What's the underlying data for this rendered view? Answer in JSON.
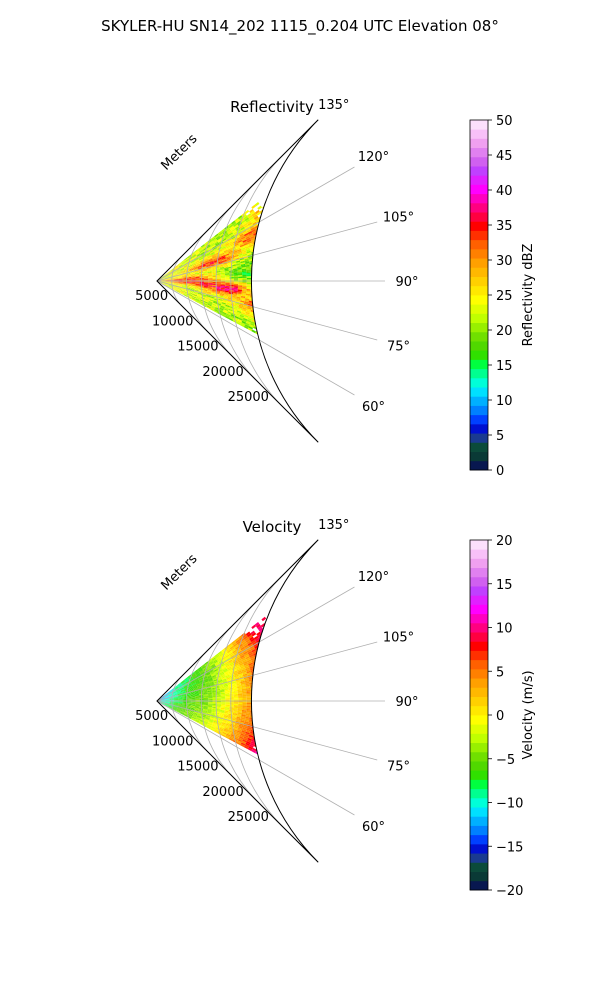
{
  "suptitle": "SKYLER-HU  SN14_202  1115_0.204 UTC Elevation 08°",
  "chart_data": [
    {
      "type": "heatmap",
      "projection": "polar-sector",
      "title": "Reflectivity",
      "radial_label": "Meters",
      "radial_ticks": [
        "5000",
        "10000",
        "15000",
        "20000",
        "25000"
      ],
      "radial_tick_values": [
        5000,
        10000,
        15000,
        20000,
        25000
      ],
      "radial_max": 32000,
      "theta_range_deg": [
        45,
        135
      ],
      "theta_ticks": [
        "60°",
        "75°",
        "90°",
        "105°",
        "120°",
        "135°"
      ],
      "theta_tick_values": [
        60,
        75,
        90,
        105,
        120,
        135
      ],
      "grid": true,
      "colorbar": {
        "label": "Reflectivity dBZ",
        "min": 0,
        "max": 50,
        "ticks": [
          "0",
          "5",
          "10",
          "15",
          "20",
          "25",
          "30",
          "35",
          "40",
          "45",
          "50"
        ],
        "tick_values": [
          0,
          5,
          10,
          15,
          20,
          25,
          30,
          35,
          40,
          45,
          50
        ],
        "colors": [
          "#081850",
          "#0a3a36",
          "#0b4b3a",
          "#1a3a90",
          "#0010d0",
          "#0040ff",
          "#0080ff",
          "#00b0ff",
          "#00e0ff",
          "#00ffd8",
          "#00ff90",
          "#00ff40",
          "#30e000",
          "#50d800",
          "#70e000",
          "#98f000",
          "#c0ff00",
          "#e0ff00",
          "#ffff00",
          "#ffe800",
          "#ffd000",
          "#ffb800",
          "#ffa000",
          "#ff8000",
          "#ff6000",
          "#ff3000",
          "#ff0000",
          "#ff0040",
          "#ff0080",
          "#ff00c0",
          "#ff00ff",
          "#e020ff",
          "#c040ff",
          "#d060f0",
          "#e080f0",
          "#f0a0f0",
          "#f8c0f8",
          "#fce0fc"
        ]
      },
      "sector_extent": {
        "theta_deg": [
          62,
          128
        ],
        "range_m": [
          0,
          23000
        ]
      },
      "patches": [
        {
          "theta": 75,
          "r": 15000,
          "value": 34
        },
        {
          "theta": 70,
          "r": 19000,
          "value": 30
        },
        {
          "theta": 83,
          "r": 9500,
          "value": 37
        },
        {
          "theta": 88,
          "r": 5000,
          "value": 36
        },
        {
          "theta": 93,
          "r": 4000,
          "value": 34
        },
        {
          "theta": 108,
          "r": 8000,
          "value": 35
        },
        {
          "theta": 115,
          "r": 15000,
          "value": 34
        },
        {
          "theta": 95,
          "r": 12000,
          "value": 18
        },
        {
          "theta": 100,
          "r": 20000,
          "value": 16
        },
        {
          "theta": 85,
          "r": 20000,
          "value": 20
        },
        {
          "theta": 65,
          "r": 22000,
          "value": 22
        },
        {
          "theta": 122,
          "r": 18000,
          "value": 28
        }
      ]
    },
    {
      "type": "heatmap",
      "projection": "polar-sector",
      "title": "Velocity",
      "radial_label": "Meters",
      "radial_ticks": [
        "5000",
        "10000",
        "15000",
        "20000",
        "25000"
      ],
      "radial_tick_values": [
        5000,
        10000,
        15000,
        20000,
        25000
      ],
      "radial_max": 32000,
      "theta_range_deg": [
        45,
        135
      ],
      "theta_ticks": [
        "60°",
        "75°",
        "90°",
        "105°",
        "120°",
        "135°"
      ],
      "theta_tick_values": [
        60,
        75,
        90,
        105,
        120,
        135
      ],
      "grid": true,
      "colorbar": {
        "label": "Velocity (m/s)",
        "min": -20,
        "max": 20,
        "ticks": [
          "−20",
          "−15",
          "−10",
          "−5",
          "0",
          "5",
          "10",
          "15",
          "20"
        ],
        "tick_values": [
          -20,
          -15,
          -10,
          -5,
          0,
          5,
          10,
          15,
          20
        ],
        "colors": [
          "#081850",
          "#0a3a36",
          "#0b4b3a",
          "#1a3a90",
          "#0010d0",
          "#0040ff",
          "#0080ff",
          "#00b0ff",
          "#00e0ff",
          "#00ffd8",
          "#00ff90",
          "#00ff40",
          "#30e000",
          "#50d800",
          "#70e000",
          "#98f000",
          "#c0ff00",
          "#e0ff00",
          "#ffff00",
          "#ffe800",
          "#ffd000",
          "#ffb800",
          "#ffa000",
          "#ff8000",
          "#ff6000",
          "#ff3000",
          "#ff0000",
          "#ff0040",
          "#ff0080",
          "#ff00c0",
          "#ff00ff",
          "#e020ff",
          "#c040ff",
          "#d060f0",
          "#e080f0",
          "#f0a0f0",
          "#f8c0f8",
          "#fce0fc"
        ]
      },
      "sector_extent": {
        "theta_deg": [
          62,
          128
        ],
        "range_m": [
          0,
          23000
        ]
      },
      "radial_profile": [
        {
          "r": 0,
          "value": -11
        },
        {
          "r": 3000,
          "value": -7
        },
        {
          "r": 7000,
          "value": -4
        },
        {
          "r": 11000,
          "value": 1
        },
        {
          "r": 14000,
          "value": 6
        },
        {
          "r": 17000,
          "value": 11
        },
        {
          "r": 20000,
          "value": 14
        },
        {
          "r": 23000,
          "value": 15
        }
      ]
    }
  ]
}
